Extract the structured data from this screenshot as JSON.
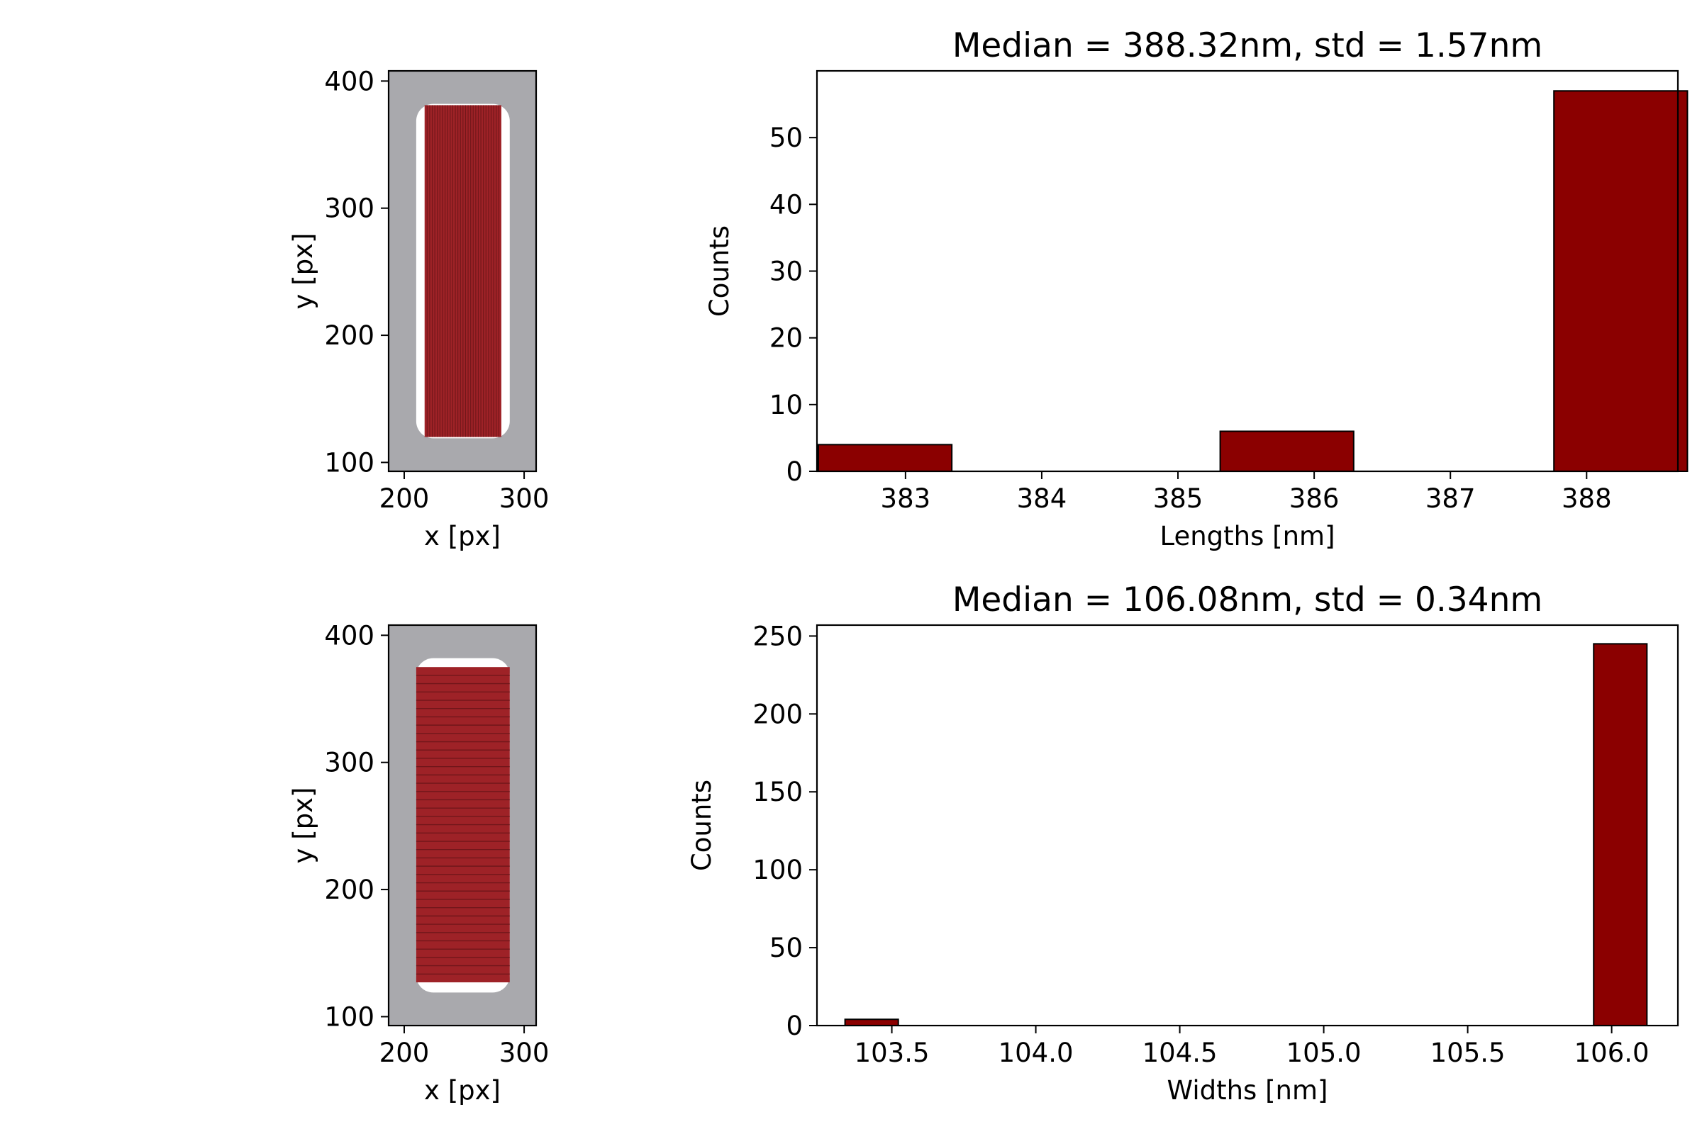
{
  "colors": {
    "bar": "#8b0000",
    "bar_edge": "#000000",
    "mask_gray": "#a9a9ad",
    "rod_red": "#9e2227",
    "stripe": "#6a1518"
  },
  "chart_data": [
    {
      "type": "image",
      "xlabel": "x [px]",
      "ylabel": "y [px]",
      "xlim": [
        187,
        310
      ],
      "ylim": [
        93,
        408
      ],
      "xticks": [
        200,
        300
      ],
      "yticks": [
        100,
        200,
        300,
        400
      ],
      "object_bounds": {
        "x": [
          210,
          288
        ],
        "y": [
          119,
          382
        ]
      },
      "fill_bounds": {
        "x": [
          217,
          281
        ],
        "y": [
          120,
          381
        ]
      },
      "stripe_orientation": "vertical",
      "stripe_count": 30
    },
    {
      "type": "bar",
      "title": "Median = 388.32nm, std = 1.57nm",
      "xlabel": "Lengths [nm]",
      "ylabel": "Counts",
      "xlim": [
        382.35,
        388.67
      ],
      "ylim": [
        0,
        60
      ],
      "xticks": [
        383,
        384,
        385,
        386,
        387,
        388
      ],
      "yticks": [
        0,
        10,
        20,
        30,
        40,
        50
      ],
      "bin_width": 0.98,
      "bars": [
        {
          "center": 382.85,
          "value": 4
        },
        {
          "center": 385.8,
          "value": 6
        },
        {
          "center": 388.25,
          "value": 57
        }
      ]
    },
    {
      "type": "image",
      "xlabel": "x [px]",
      "ylabel": "y [px]",
      "xlim": [
        187,
        310
      ],
      "ylim": [
        93,
        408
      ],
      "xticks": [
        200,
        300
      ],
      "yticks": [
        100,
        200,
        300,
        400
      ],
      "object_bounds": {
        "x": [
          210,
          288
        ],
        "y": [
          119,
          382
        ]
      },
      "fill_bounds": {
        "x": [
          210,
          288
        ],
        "y": [
          127,
          375
        ]
      },
      "stripe_orientation": "horizontal",
      "stripe_count": 38
    },
    {
      "type": "bar",
      "title": "Median = 106.08nm, std = 0.34nm",
      "xlabel": "Widths [nm]",
      "ylabel": "Counts",
      "xlim": [
        103.24,
        106.23
      ],
      "ylim": [
        0,
        257
      ],
      "xticks": [
        "103.5",
        "104.0",
        "104.5",
        "105.0",
        "105.5",
        "106.0"
      ],
      "yticks": [
        0,
        50,
        100,
        150,
        200,
        250
      ],
      "bin_width": 0.185,
      "bars": [
        {
          "center": 103.43,
          "value": 4
        },
        {
          "center": 106.03,
          "value": 245
        }
      ]
    }
  ]
}
